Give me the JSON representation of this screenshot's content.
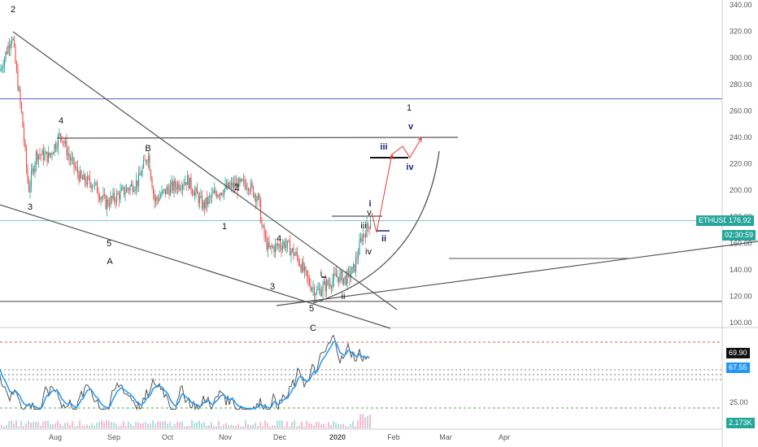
{
  "chart_data": [
    {
      "type": "candlestick",
      "symbol": "ETHUSD",
      "price_axis": {
        "ticks": [
          "340.00",
          "320.00",
          "300.00",
          "280.00",
          "260.00",
          "240.00",
          "220.00",
          "200.00",
          "180.00",
          "160.00",
          "140.00",
          "120.00",
          "100.00"
        ],
        "ylim": [
          95,
          345
        ]
      },
      "time_axis": {
        "ticks": [
          "Aug",
          "Sep",
          "Oct",
          "Nov",
          "Dec",
          "2020",
          "Feb",
          "Mar",
          "Apr"
        ]
      },
      "last_price_tag": {
        "symbol": "ETHUSD",
        "value": "176.92",
        "color": "#26a69a"
      },
      "countdown": "02:30:59",
      "horizontal_levels": [
        {
          "value": 269,
          "color": "#5c5ccc"
        },
        {
          "value": 177,
          "color": "#80cbc4"
        },
        {
          "value": 116,
          "color": "#444444"
        }
      ],
      "wave_labels": [
        {
          "text": "2",
          "color": "#111111"
        },
        {
          "text": "3",
          "color": "#111111"
        },
        {
          "text": "4",
          "color": "#111111"
        },
        {
          "text": "5",
          "color": "#111111"
        },
        {
          "text": "A",
          "color": "#111111"
        },
        {
          "text": "B",
          "color": "#111111"
        },
        {
          "text": "1",
          "color": "#111111"
        },
        {
          "text": "2",
          "color": "#111111"
        },
        {
          "text": "4",
          "color": "#111111"
        },
        {
          "text": "3",
          "color": "#111111"
        },
        {
          "text": "5",
          "color": "#111111"
        },
        {
          "text": "C",
          "color": "#111111"
        },
        {
          "text": "i",
          "color": "#111111"
        },
        {
          "text": "ii",
          "color": "#111111"
        },
        {
          "text": "iii",
          "color": "#111111"
        },
        {
          "text": "iv",
          "color": "#111111"
        },
        {
          "text": "v",
          "color": "#111111"
        },
        {
          "text": "i",
          "color": "#1a237e"
        },
        {
          "text": "ii",
          "color": "#1a237e"
        },
        {
          "text": "iii",
          "color": "#1a237e"
        },
        {
          "text": "iv",
          "color": "#1a237e"
        },
        {
          "text": "v",
          "color": "#1a237e"
        },
        {
          "text": "1",
          "color": "#111111"
        }
      ]
    },
    {
      "type": "line",
      "name": "oscillator",
      "current_value": "69.90",
      "signal_value": "67.55",
      "tick": "25.00",
      "volume_tag": "2.173K",
      "level_colors": {
        "upper": "#ef5350",
        "lower": "#4caf50",
        "middle": "#555555"
      },
      "series_colors": {
        "main": "#555555",
        "signal": "#2196f3"
      }
    }
  ]
}
